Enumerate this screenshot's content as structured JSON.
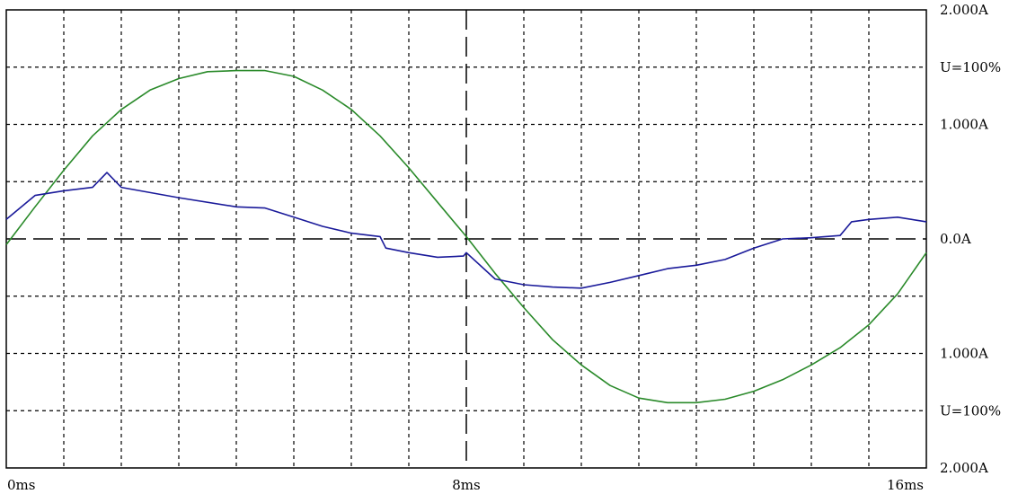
{
  "chart_data": {
    "type": "line",
    "title": "",
    "grid": true,
    "colors": {
      "voltage": "#2a8a2a",
      "current": "#1a1a9a",
      "background": "#ffffff",
      "grid": "#000000"
    },
    "x_range_ms": [
      0,
      16
    ],
    "x_tick_labels": [
      {
        "value": 0,
        "label": "0ms"
      },
      {
        "value": 8,
        "label": "8ms"
      },
      {
        "value": 16,
        "label": "16ms"
      }
    ],
    "y_tick_labels": [
      {
        "value": 2.0,
        "label": "2.000A"
      },
      {
        "value": 1.5,
        "label": "U=100%"
      },
      {
        "value": 1.0,
        "label": "1.000A"
      },
      {
        "value": 0.0,
        "label": "0.0A"
      },
      {
        "value": -1.0,
        "label": "1.000A"
      },
      {
        "value": -1.5,
        "label": "U=100%"
      },
      {
        "value": -2.0,
        "label": "2.000A"
      }
    ],
    "series": [
      {
        "key": "voltage",
        "x": [
          0,
          0.5,
          1,
          1.5,
          2,
          2.5,
          3,
          3.5,
          4,
          4.5,
          5,
          5.5,
          6,
          6.5,
          7,
          7.5,
          8,
          8.5,
          9,
          9.5,
          10,
          10.5,
          11,
          11.5,
          12,
          12.5,
          13,
          13.5,
          14,
          14.5,
          15,
          15.5,
          16
        ],
        "values": [
          -0.05,
          0.28,
          0.6,
          0.9,
          1.13,
          1.3,
          1.4,
          1.46,
          1.47,
          1.47,
          1.42,
          1.3,
          1.13,
          0.9,
          0.62,
          0.32,
          0.02,
          -0.3,
          -0.6,
          -0.88,
          -1.1,
          -1.28,
          -1.39,
          -1.43,
          -1.43,
          -1.4,
          -1.33,
          -1.23,
          -1.1,
          -0.95,
          -0.75,
          -0.48,
          -0.12
        ]
      },
      {
        "key": "current",
        "x": [
          0,
          0.5,
          1,
          1.5,
          1.75,
          2,
          3,
          4,
          4.5,
          5,
          5.5,
          6,
          6.5,
          6.6,
          7,
          7.5,
          7.95,
          8,
          8.5,
          9,
          9.5,
          10,
          10.5,
          11,
          11.5,
          12,
          12.5,
          13,
          13.5,
          14,
          14.5,
          14.7,
          15,
          15.5,
          16
        ],
        "values": [
          0.17,
          0.38,
          0.42,
          0.45,
          0.58,
          0.45,
          0.36,
          0.28,
          0.27,
          0.19,
          0.11,
          0.05,
          0.02,
          -0.08,
          -0.12,
          -0.16,
          -0.15,
          -0.12,
          -0.35,
          -0.4,
          -0.42,
          -0.43,
          -0.38,
          -0.32,
          -0.26,
          -0.23,
          -0.18,
          -0.08,
          0.0,
          0.01,
          0.03,
          0.15,
          0.17,
          0.19,
          0.15
        ]
      }
    ]
  }
}
